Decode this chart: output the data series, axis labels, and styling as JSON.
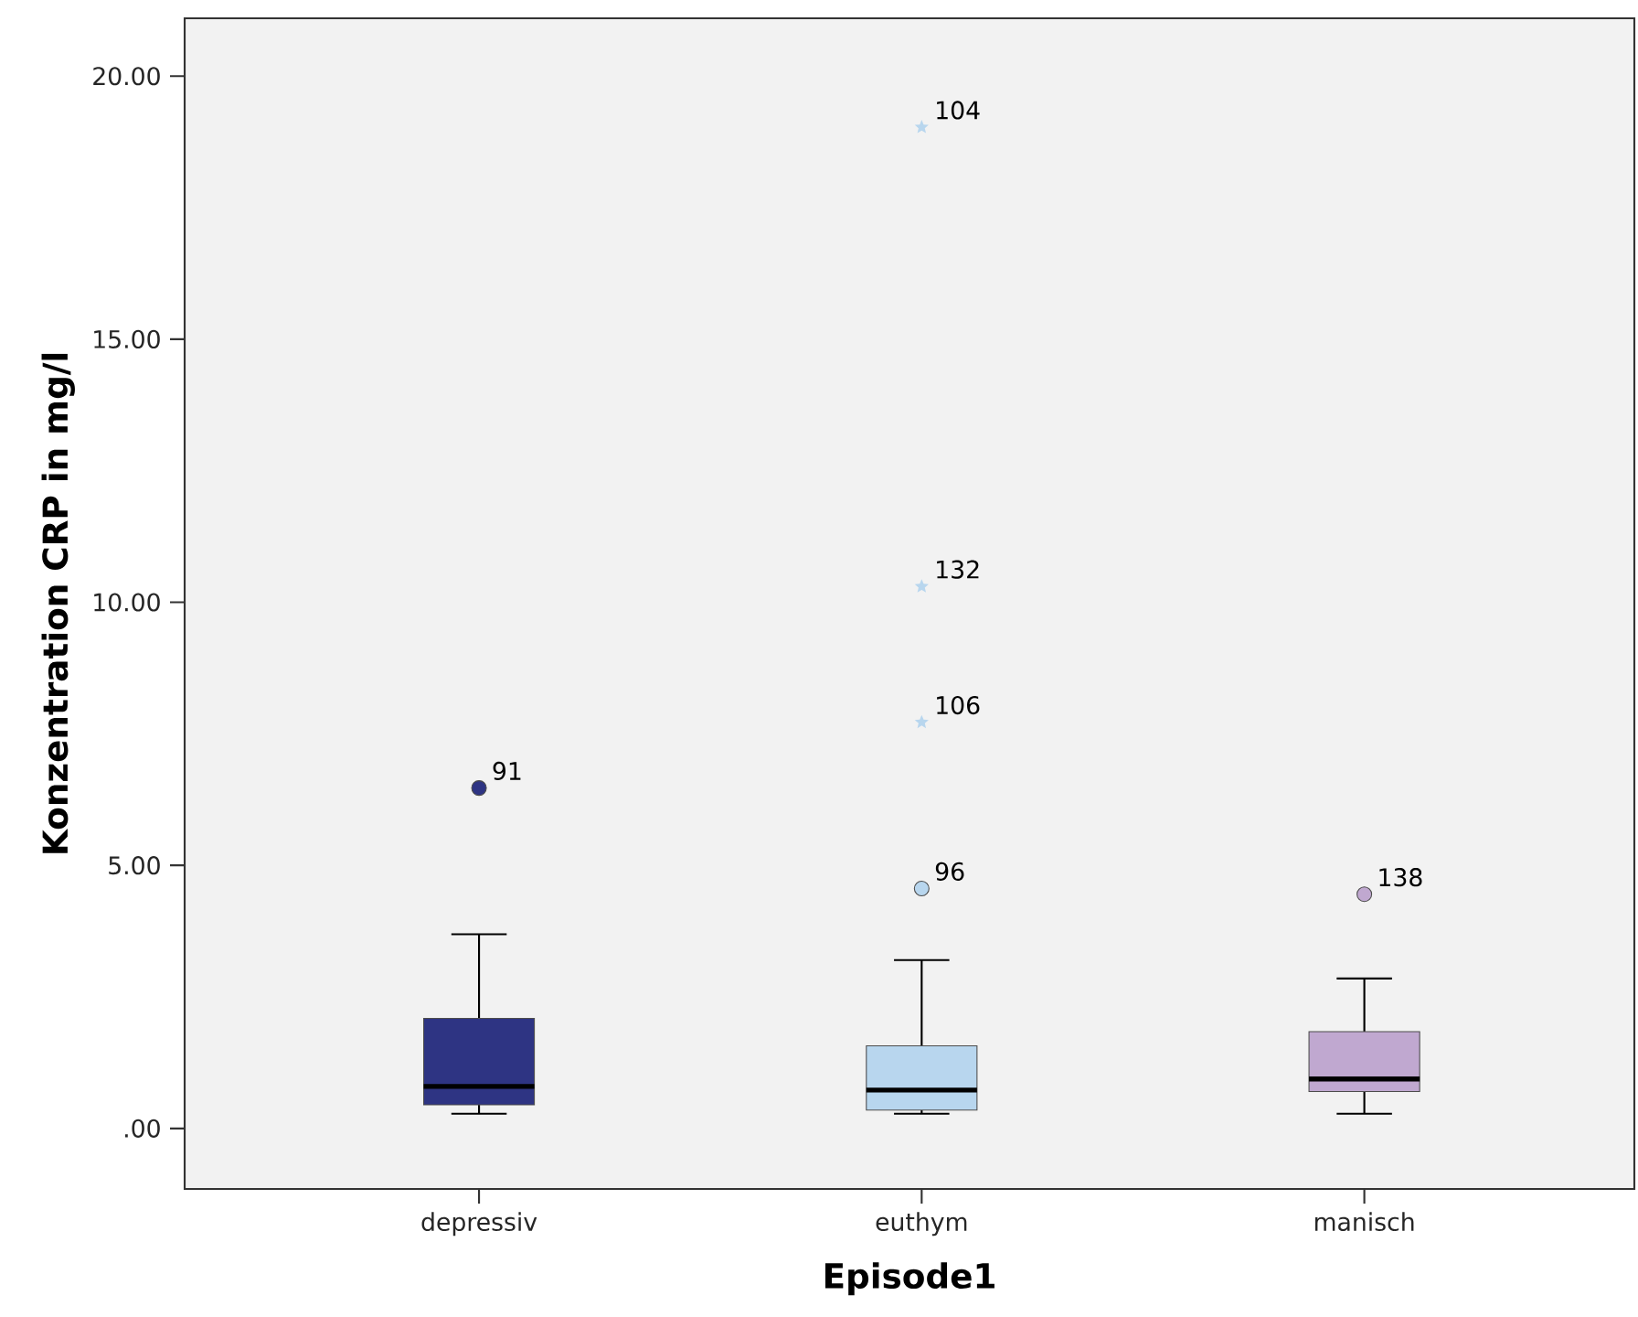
{
  "chart_data": {
    "type": "box",
    "xlabel": "Episode1",
    "ylabel": "Konzentration CRP in mg/l",
    "categories": [
      "depressiv",
      "euthym",
      "manisch"
    ],
    "series": [
      {
        "type": "box",
        "colors": [
          "#2e3483",
          "#b8d6ee",
          "#c0a8d0"
        ],
        "boxes": [
          {
            "low": 0.28,
            "q1": 0.45,
            "median": 0.8,
            "q3": 2.09,
            "high": 3.69
          },
          {
            "low": 0.28,
            "q1": 0.35,
            "median": 0.73,
            "q3": 1.57,
            "high": 3.2
          },
          {
            "low": 0.28,
            "q1": 0.7,
            "median": 0.94,
            "q3": 1.84,
            "high": 2.85
          }
        ]
      },
      {
        "type": "scatter",
        "marker": "circle",
        "color": "#2e3483",
        "x": [
          "depressiv"
        ],
        "values": [
          6.47
        ]
      },
      {
        "type": "scatter",
        "marker": "circle",
        "color": "#b8d6ee",
        "x": [
          "euthym"
        ],
        "values": [
          4.56
        ]
      },
      {
        "type": "scatter",
        "marker": "circle",
        "color": "#c0a8d0",
        "x": [
          "manisch"
        ],
        "values": [
          4.45
        ]
      },
      {
        "type": "scatter",
        "marker": "star",
        "color": "#b8d6ee",
        "x": [
          "euthym",
          "euthym",
          "euthym"
        ],
        "values": [
          19.03,
          10.3,
          7.72
        ]
      }
    ],
    "ylim": [
      -1.15,
      21.1
    ],
    "yticks": [
      {
        "value": 0,
        "label": ".00"
      },
      {
        "value": 5,
        "label": "5.00"
      },
      {
        "value": 10,
        "label": "10.00"
      },
      {
        "value": 15,
        "label": "15.00"
      },
      {
        "value": 20,
        "label": "20.00"
      }
    ],
    "annotations": [
      {
        "text": "91",
        "x": "depressiv",
        "y": 6.47
      },
      {
        "text": "96",
        "x": "euthym",
        "y": 4.56
      },
      {
        "text": "138",
        "x": "manisch",
        "y": 4.45
      },
      {
        "text": "104",
        "x": "euthym",
        "y": 19.03
      },
      {
        "text": "132",
        "x": "euthym",
        "y": 10.3
      },
      {
        "text": "106",
        "x": "euthym",
        "y": 7.72
      }
    ],
    "grid": false
  }
}
